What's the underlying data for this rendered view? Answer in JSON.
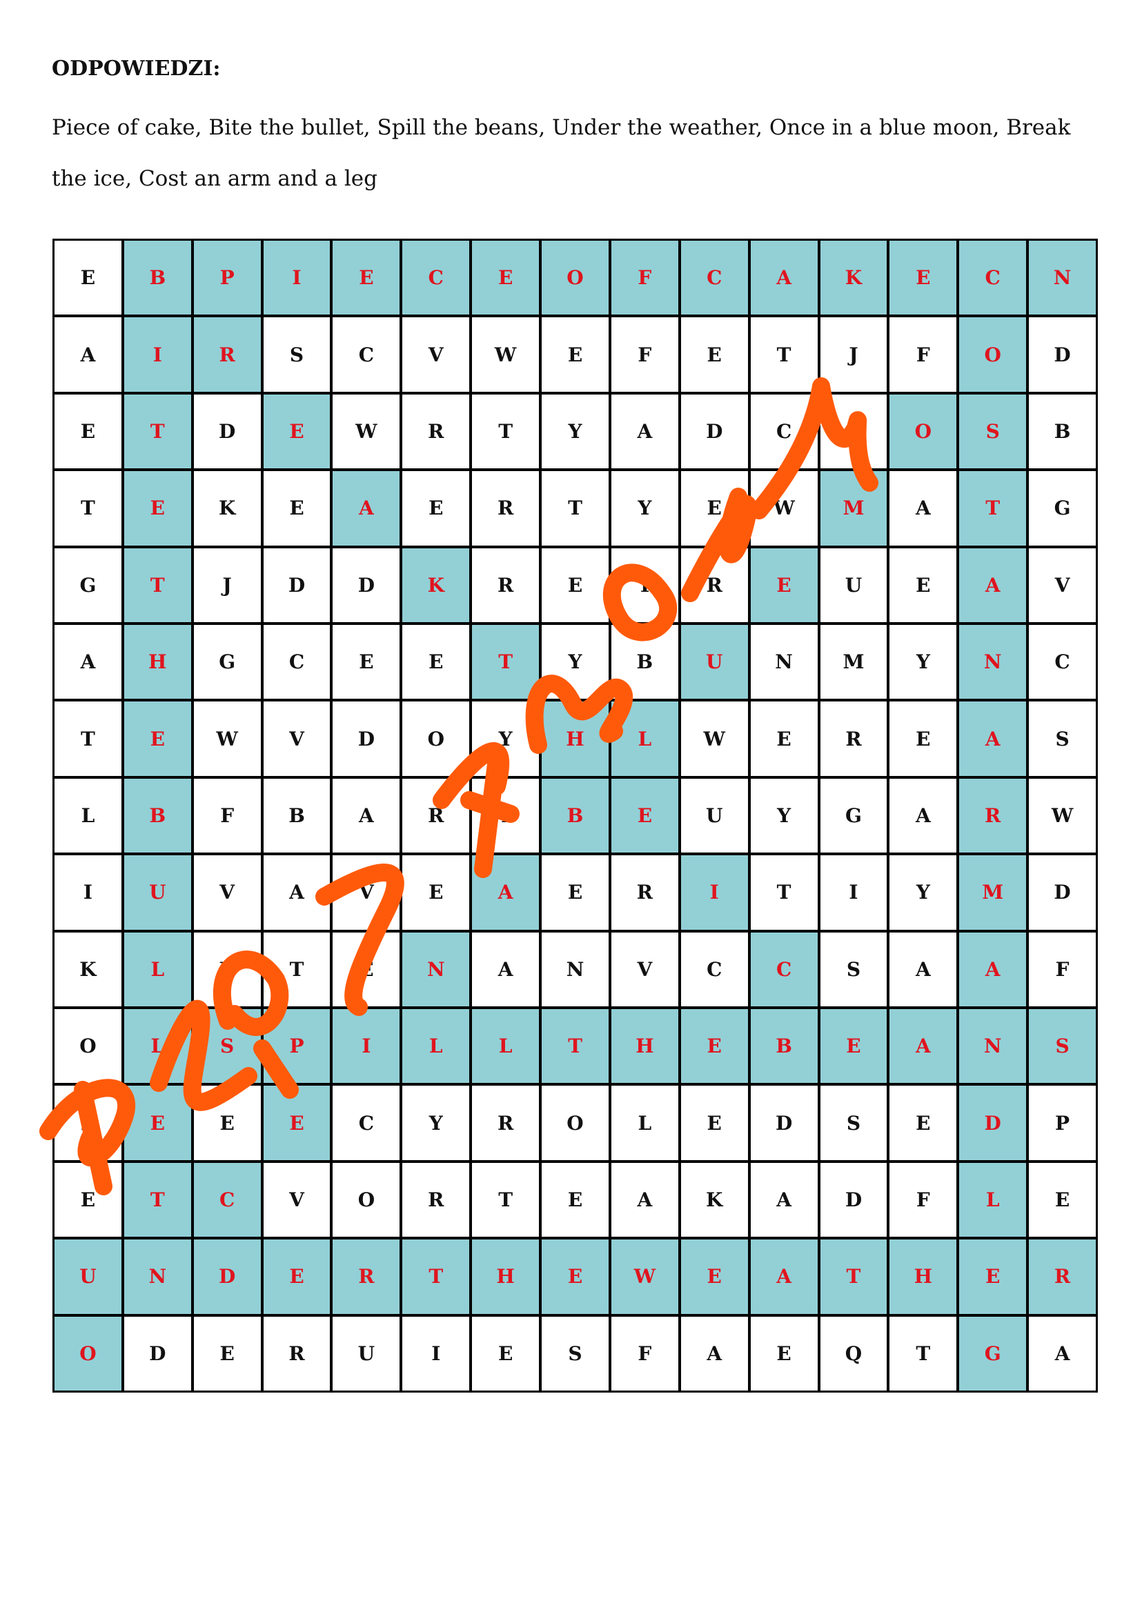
{
  "title": "ODPOWIEDZI:",
  "answers": "Piece of cake, Bite the bullet, Spill the beans, Under the weather, Once in a blue moon, Break the ice, Cost an arm and a leg",
  "colors": {
    "highlight_bg": "#92d0d6",
    "highlight_text": "#e0141e",
    "watermark": "#ff5a0a"
  },
  "watermark": "PLANETA WIEDZY",
  "grid": {
    "rows": [
      "EBPIECEOFCAKECN",
      "AIRSCVWEFETJFOD",
      "ETDEWRTYADCFOSB",
      "TEKEAERTYEWMATG",
      "GTJDDKREYREUEAV",
      "AHGCEETYBUNMYNC",
      "TEWVDOYHLWEREAS",
      "LBFBARTBEUYGARW",
      "IUVAVEAERITIYMD",
      "KLBTENANVCCSAAF",
      "OLSPILLTHEBEANS",
      "PEEECYROLEDSEDP",
      "ETCVORTEAKADFLE",
      "UNDERTHEWEATHER",
      "ODERUIESFAEQTGA"
    ],
    "highlight": [
      "011111111111111",
      "011000000000010",
      "010100000000110",
      "010010000001010",
      "010001000010010",
      "010000100100010",
      "010000011000010",
      "010000011000010",
      "010000100100010",
      "010001000010010",
      "011111111111111",
      "010100000000010",
      "011000000000010",
      "111111111111111",
      "100000000000010"
    ]
  }
}
